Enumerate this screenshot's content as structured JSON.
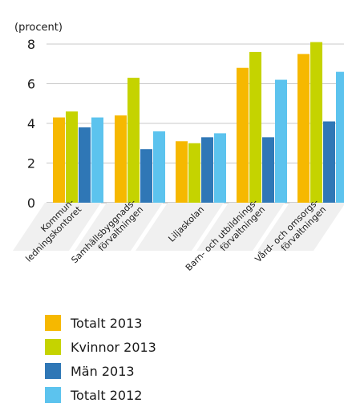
{
  "chart_data": {
    "type": "bar",
    "title": "",
    "unit_label": "(procent)",
    "ylim": [
      0,
      8
    ],
    "y_ticks": [
      "0",
      "2",
      "4",
      "6",
      "8"
    ],
    "grid": true,
    "legend_position": "bottom-left",
    "categories": [
      [
        "Kommun-",
        "ledningskontoret"
      ],
      [
        "Samhällsbyggnads-",
        "förvaltningen"
      ],
      [
        "Liljaskolan"
      ],
      [
        "Barn- och utbildnings-",
        "förvaltningen"
      ],
      [
        "Vård- och omsorgs-",
        "förvaltningen"
      ]
    ],
    "series": [
      {
        "name": "Totalt 2013",
        "color": "#f6b800",
        "values": [
          4.3,
          4.4,
          3.1,
          6.8,
          7.5
        ]
      },
      {
        "name": "Kvinnor 2013",
        "color": "#c5d300",
        "values": [
          4.6,
          6.3,
          3.0,
          7.6,
          8.1
        ]
      },
      {
        "name": "Män 2013",
        "color": "#2f77b6",
        "values": [
          3.8,
          2.7,
          3.3,
          3.3,
          4.1
        ]
      },
      {
        "name": "Totalt 2012",
        "color": "#5cc3ee",
        "values": [
          4.3,
          3.6,
          3.5,
          6.2,
          6.6
        ]
      }
    ]
  }
}
